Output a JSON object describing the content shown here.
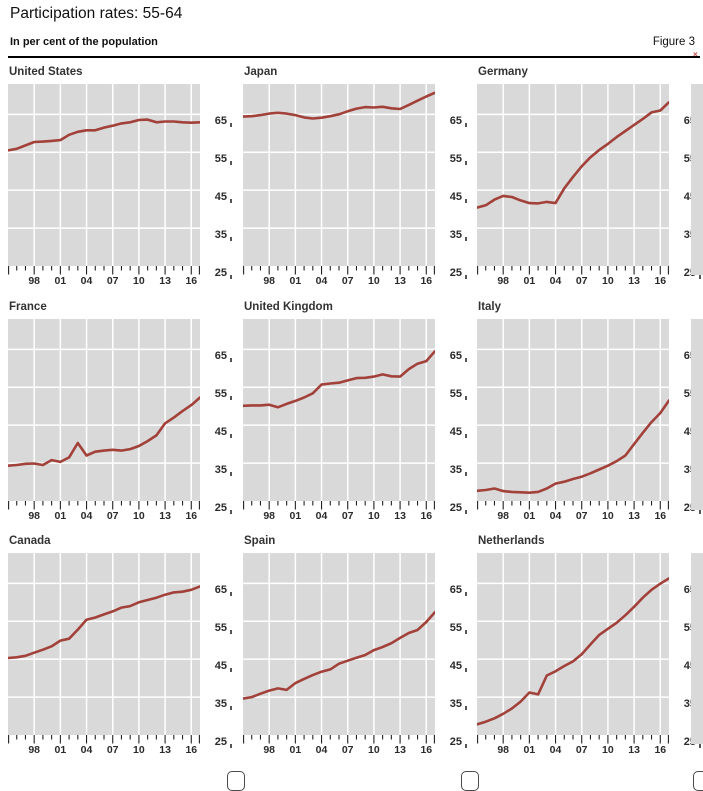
{
  "header": {
    "title": "Participation rates: 55-64",
    "subtitle": "In per cent of the population",
    "figure_label": "Figure 3"
  },
  "colors": {
    "line": "#a2413a",
    "plot_bg": "#d9d9d9",
    "gridline": "#ffffff",
    "tick": "#222222",
    "text": "#1a1a1a"
  },
  "axes": {
    "y_min": 25,
    "y_max": 73,
    "y_gridline_values": [
      35,
      45,
      55,
      65
    ],
    "y_tick_labels": [
      "65",
      "55",
      "45",
      "35",
      "25"
    ],
    "y_tick_values": [
      65,
      55,
      45,
      35,
      25
    ],
    "x_min": 1995,
    "x_max": 2017,
    "x_grid_years": [
      1998,
      2001,
      2004,
      2007,
      2010,
      2013,
      2016
    ],
    "x_tick_labels": [
      "98",
      "01",
      "04",
      "07",
      "10",
      "13",
      "16"
    ],
    "x_tick_label_years": [
      1998,
      2001,
      2004,
      2007,
      2010,
      2013,
      2016
    ]
  },
  "chart_data": {
    "type": "line",
    "title": "Participation rates: 55-64",
    "ylabel": "Per cent of the population",
    "ylim": [
      25,
      73
    ],
    "grid": true,
    "legend_position": "none",
    "x": [
      1995,
      1996,
      1997,
      1998,
      1999,
      2000,
      2001,
      2002,
      2003,
      2004,
      2005,
      2006,
      2007,
      2008,
      2009,
      2010,
      2011,
      2012,
      2013,
      2014,
      2015,
      2016,
      2017
    ],
    "panels": [
      {
        "country": "United States",
        "values": [
          55.5,
          55.9,
          56.8,
          57.7,
          57.8,
          58.0,
          58.2,
          59.6,
          60.4,
          60.8,
          60.8,
          61.5,
          62.0,
          62.6,
          62.9,
          63.5,
          63.6,
          62.9,
          63.1,
          63.1,
          62.9,
          62.8,
          62.9
        ]
      },
      {
        "country": "Japan",
        "values": [
          64.4,
          64.5,
          64.8,
          65.2,
          65.4,
          65.2,
          64.8,
          64.2,
          63.9,
          64.1,
          64.5,
          65.0,
          65.8,
          66.5,
          66.9,
          66.8,
          67.0,
          66.6,
          66.4,
          67.5,
          68.6,
          69.7,
          70.7
        ]
      },
      {
        "country": "Germany",
        "values": [
          40.4,
          41.0,
          42.5,
          43.5,
          43.2,
          42.3,
          41.6,
          41.5,
          41.9,
          41.6,
          45.5,
          48.5,
          51.3,
          53.7,
          55.6,
          57.2,
          59.0,
          60.6,
          62.2,
          63.8,
          65.5,
          66.0,
          68.2
        ]
      },
      {
        "country": "France",
        "values": [
          34.3,
          34.5,
          34.8,
          34.9,
          34.5,
          35.8,
          35.3,
          36.5,
          40.3,
          37.0,
          38.0,
          38.3,
          38.5,
          38.3,
          38.7,
          39.5,
          40.8,
          42.3,
          45.5,
          47.0,
          48.7,
          50.3,
          52.3
        ]
      },
      {
        "country": "United Kingdom",
        "values": [
          50.1,
          50.2,
          50.2,
          50.4,
          49.7,
          50.6,
          51.4,
          52.3,
          53.4,
          55.7,
          56.0,
          56.2,
          56.8,
          57.4,
          57.5,
          57.8,
          58.4,
          57.9,
          57.8,
          59.8,
          61.2,
          61.9,
          64.5
        ]
      },
      {
        "country": "Italy",
        "values": [
          27.7,
          27.9,
          28.3,
          27.6,
          27.4,
          27.3,
          27.2,
          27.4,
          28.3,
          29.6,
          30.1,
          30.8,
          31.4,
          32.3,
          33.3,
          34.3,
          35.5,
          37.0,
          40.0,
          43.0,
          45.8,
          48.2,
          51.5
        ]
      },
      {
        "country": "Canada",
        "values": [
          45.3,
          45.5,
          45.9,
          46.7,
          47.5,
          48.4,
          49.9,
          50.4,
          52.8,
          55.4,
          56.0,
          56.8,
          57.6,
          58.6,
          59.0,
          60.0,
          60.6,
          61.2,
          62.0,
          62.6,
          62.8,
          63.3,
          64.2
        ]
      },
      {
        "country": "Spain",
        "values": [
          34.6,
          35.0,
          35.9,
          36.7,
          37.3,
          36.9,
          38.7,
          39.8,
          40.8,
          41.7,
          42.3,
          43.8,
          44.6,
          45.4,
          46.1,
          47.4,
          48.2,
          49.2,
          50.6,
          51.9,
          52.7,
          54.8,
          57.4
        ]
      },
      {
        "country": "Netherlands",
        "values": [
          27.8,
          28.5,
          29.4,
          30.6,
          32.0,
          33.8,
          36.2,
          35.7,
          40.7,
          41.8,
          43.2,
          44.4,
          46.3,
          48.9,
          51.4,
          53.0,
          54.6,
          56.6,
          58.8,
          61.2,
          63.3,
          64.9,
          66.3
        ]
      }
    ]
  }
}
